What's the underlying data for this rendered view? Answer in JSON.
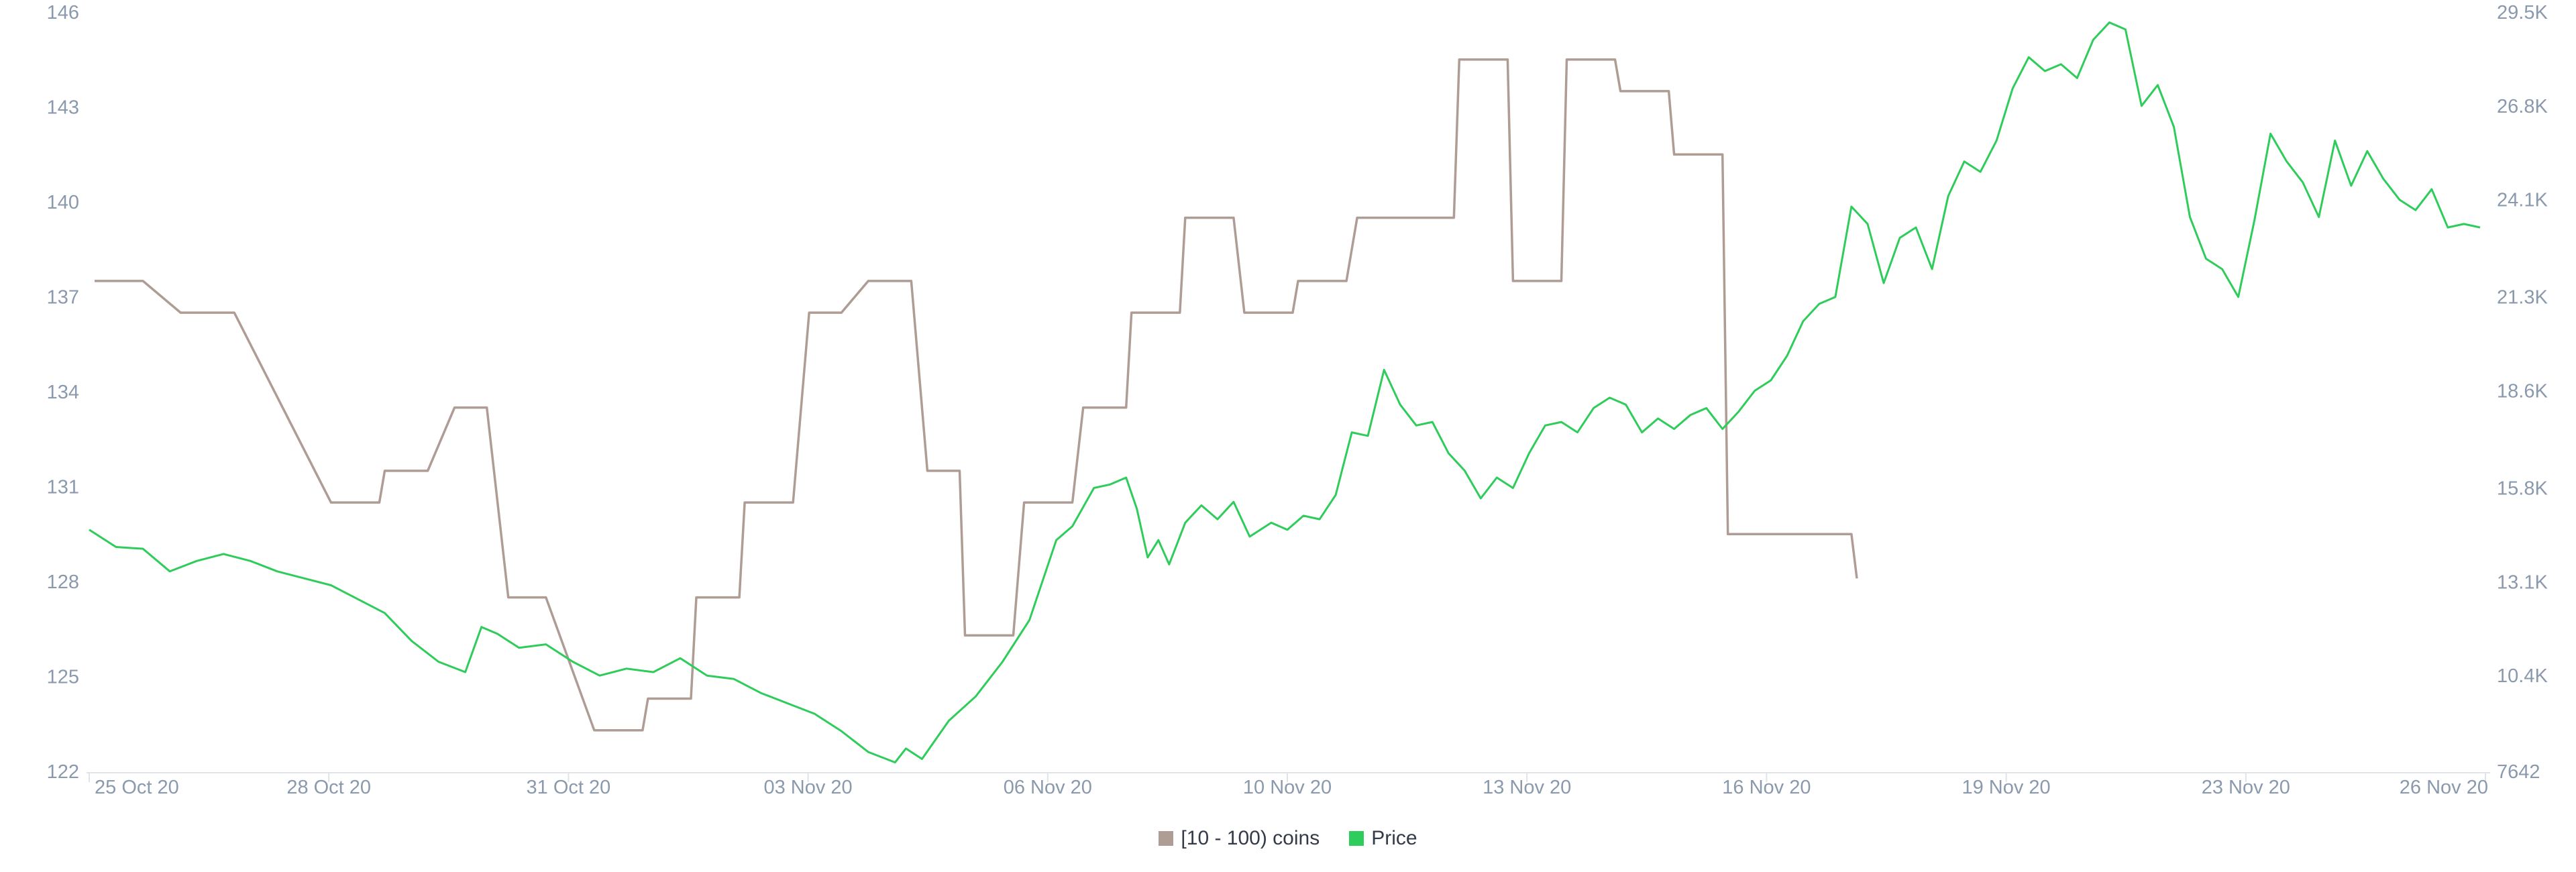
{
  "chart_data": {
    "type": "line",
    "title": "",
    "x_tick_labels": [
      "25 Oct 20",
      "28 Oct 20",
      "31 Oct 20",
      "03 Nov 20",
      "06 Nov 20",
      "10 Nov 20",
      "13 Nov 20",
      "16 Nov 20",
      "19 Nov 20",
      "23 Nov 20",
      "26 Nov 20"
    ],
    "x_tick_days": [
      0,
      3,
      6,
      9,
      12,
      15,
      18,
      21,
      24,
      27,
      30
    ],
    "xlim_days": [
      0,
      30
    ],
    "x_axis_start_date": "25 Oct 20",
    "y_left": {
      "ticks": [
        122,
        125,
        128,
        131,
        134,
        137,
        140,
        143,
        146
      ],
      "tick_labels": [
        "122",
        "125",
        "128",
        "131",
        "134",
        "137",
        "140",
        "143",
        "146"
      ],
      "ylim": [
        122,
        146
      ]
    },
    "y_right": {
      "ticks": [
        7642,
        10400,
        13100,
        15800,
        18600,
        21300,
        24100,
        26800,
        29500
      ],
      "tick_labels": [
        "7642",
        "10.4K",
        "13.1K",
        "15.8K",
        "18.6K",
        "21.3K",
        "24.1K",
        "26.8K",
        "29.5K"
      ],
      "ylim": [
        7642,
        29500
      ]
    },
    "grid": false,
    "legend_position": "bottom-center",
    "series": [
      {
        "name": "[10 - 100) coins",
        "axis": "left",
        "color": "#ae9c95",
        "step": true,
        "points": [
          [
            0.1,
            137.5
          ],
          [
            1.0,
            137.5
          ],
          [
            1.7,
            136.5
          ],
          [
            2.7,
            136.5
          ],
          [
            4.5,
            130.5
          ],
          [
            5.4,
            130.5
          ],
          [
            5.5,
            131.5
          ],
          [
            6.3,
            131.5
          ],
          [
            6.8,
            133.5
          ],
          [
            7.4,
            133.5
          ],
          [
            7.8,
            127.5
          ],
          [
            8.5,
            127.5
          ],
          [
            9.4,
            123.3
          ],
          [
            10.3,
            123.3
          ],
          [
            10.4,
            124.3
          ],
          [
            11.2,
            124.3
          ],
          [
            11.3,
            127.5
          ],
          [
            12.1,
            127.5
          ],
          [
            12.2,
            130.5
          ],
          [
            13.1,
            130.5
          ],
          [
            13.4,
            136.5
          ],
          [
            14.0,
            136.5
          ],
          [
            14.5,
            137.5
          ],
          [
            15.3,
            137.5
          ],
          [
            15.6,
            131.5
          ],
          [
            16.2,
            131.5
          ],
          [
            16.3,
            126.3
          ],
          [
            17.2,
            126.3
          ],
          [
            17.4,
            130.5
          ],
          [
            18.3,
            130.5
          ],
          [
            18.5,
            133.5
          ],
          [
            19.3,
            133.5
          ],
          [
            19.4,
            136.5
          ],
          [
            20.3,
            136.5
          ],
          [
            20.4,
            139.5
          ],
          [
            21.3,
            139.5
          ],
          [
            21.5,
            136.5
          ],
          [
            22.4,
            136.5
          ],
          [
            22.5,
            137.5
          ],
          [
            23.4,
            137.5
          ],
          [
            23.6,
            139.5
          ],
          [
            25.4,
            139.5
          ],
          [
            25.5,
            144.5
          ],
          [
            26.4,
            144.5
          ],
          [
            26.5,
            137.5
          ],
          [
            27.4,
            137.5
          ],
          [
            27.5,
            144.5
          ],
          [
            28.4,
            144.5
          ],
          [
            28.5,
            143.5
          ],
          [
            29.4,
            143.5
          ],
          [
            29.5,
            141.5
          ],
          [
            30.4,
            141.5
          ],
          [
            30.5,
            129.5
          ],
          [
            32.8,
            129.5
          ],
          [
            32.9,
            128.1
          ]
        ]
      },
      {
        "name": "Price",
        "axis": "right",
        "color": "#2ecc5a",
        "step": false,
        "points": [
          [
            0,
            14600
          ],
          [
            0.5,
            14100
          ],
          [
            1.0,
            14050
          ],
          [
            1.5,
            13400
          ],
          [
            2.0,
            13700
          ],
          [
            2.5,
            13900
          ],
          [
            3.0,
            13700
          ],
          [
            3.5,
            13400
          ],
          [
            4.0,
            13200
          ],
          [
            4.5,
            13000
          ],
          [
            5.0,
            12600
          ],
          [
            5.5,
            12200
          ],
          [
            6.0,
            11400
          ],
          [
            6.5,
            10800
          ],
          [
            7.0,
            10500
          ],
          [
            7.3,
            11800
          ],
          [
            7.6,
            11600
          ],
          [
            8.0,
            11200
          ],
          [
            8.5,
            11300
          ],
          [
            9.0,
            10800
          ],
          [
            9.5,
            10400
          ],
          [
            10.0,
            10600
          ],
          [
            10.5,
            10500
          ],
          [
            11.0,
            10900
          ],
          [
            11.5,
            10400
          ],
          [
            12.0,
            10300
          ],
          [
            12.5,
            9900
          ],
          [
            13.0,
            9600
          ],
          [
            13.5,
            9300
          ],
          [
            14.0,
            8800
          ],
          [
            14.5,
            8200
          ],
          [
            15.0,
            7900
          ],
          [
            15.2,
            8300
          ],
          [
            15.5,
            8000
          ],
          [
            16.0,
            9100
          ],
          [
            16.5,
            9800
          ],
          [
            17.0,
            10800
          ],
          [
            17.5,
            12000
          ],
          [
            18.0,
            14300
          ],
          [
            18.3,
            14700
          ],
          [
            18.7,
            15800
          ],
          [
            19.0,
            15900
          ],
          [
            19.3,
            16100
          ],
          [
            19.5,
            15200
          ],
          [
            19.7,
            13800
          ],
          [
            19.9,
            14300
          ],
          [
            20.1,
            13600
          ],
          [
            20.4,
            14800
          ],
          [
            20.7,
            15300
          ],
          [
            21.0,
            14900
          ],
          [
            21.3,
            15400
          ],
          [
            21.6,
            14400
          ],
          [
            22.0,
            14800
          ],
          [
            22.3,
            14600
          ],
          [
            22.6,
            15000
          ],
          [
            22.9,
            14900
          ],
          [
            23.2,
            15600
          ],
          [
            23.5,
            17400
          ],
          [
            23.8,
            17300
          ],
          [
            24.1,
            19200
          ],
          [
            24.4,
            18200
          ],
          [
            24.7,
            17600
          ],
          [
            25.0,
            17700
          ],
          [
            25.3,
            16800
          ],
          [
            25.6,
            16300
          ],
          [
            25.9,
            15500
          ],
          [
            26.2,
            16100
          ],
          [
            26.5,
            15800
          ],
          [
            26.8,
            16800
          ],
          [
            27.1,
            17600
          ],
          [
            27.4,
            17700
          ],
          [
            27.7,
            17400
          ],
          [
            28.0,
            18100
          ],
          [
            28.3,
            18400
          ],
          [
            28.6,
            18200
          ],
          [
            28.9,
            17400
          ],
          [
            29.2,
            17800
          ],
          [
            29.5,
            17500
          ],
          [
            29.8,
            17900
          ],
          [
            30.1,
            18100
          ],
          [
            30.4,
            17500
          ],
          [
            30.7,
            18000
          ],
          [
            31.0,
            18600
          ],
          [
            31.3,
            18900
          ],
          [
            31.6,
            19600
          ],
          [
            31.9,
            20600
          ],
          [
            32.2,
            21100
          ],
          [
            32.5,
            21300
          ],
          [
            32.8,
            23900
          ],
          [
            33.1,
            23400
          ],
          [
            33.4,
            21700
          ],
          [
            33.7,
            23000
          ],
          [
            34.0,
            23300
          ],
          [
            34.3,
            22100
          ],
          [
            34.6,
            24200
          ],
          [
            34.9,
            25200
          ],
          [
            35.2,
            24900
          ],
          [
            35.5,
            25800
          ],
          [
            35.8,
            27300
          ],
          [
            36.1,
            28200
          ],
          [
            36.4,
            27800
          ],
          [
            36.7,
            28000
          ],
          [
            37.0,
            27600
          ],
          [
            37.3,
            28700
          ],
          [
            37.6,
            29200
          ],
          [
            37.9,
            29000
          ],
          [
            38.2,
            26800
          ],
          [
            38.5,
            27400
          ],
          [
            38.8,
            26200
          ],
          [
            39.1,
            23600
          ],
          [
            39.4,
            22400
          ],
          [
            39.7,
            22100
          ],
          [
            40.0,
            21300
          ],
          [
            40.3,
            23500
          ],
          [
            40.6,
            26000
          ],
          [
            40.9,
            25200
          ],
          [
            41.2,
            24600
          ],
          [
            41.5,
            23600
          ],
          [
            41.8,
            25800
          ],
          [
            42.1,
            24500
          ],
          [
            42.4,
            25500
          ],
          [
            42.7,
            24700
          ],
          [
            43.0,
            24100
          ],
          [
            43.3,
            23800
          ],
          [
            43.6,
            24400
          ],
          [
            43.9,
            23300
          ],
          [
            44.2,
            23400
          ],
          [
            44.5,
            23300
          ]
        ]
      }
    ]
  },
  "legend": [
    {
      "label": "[10 - 100) coins",
      "color": "#ae9c95"
    },
    {
      "label": "Price",
      "color": "#2ecc5a"
    }
  ]
}
